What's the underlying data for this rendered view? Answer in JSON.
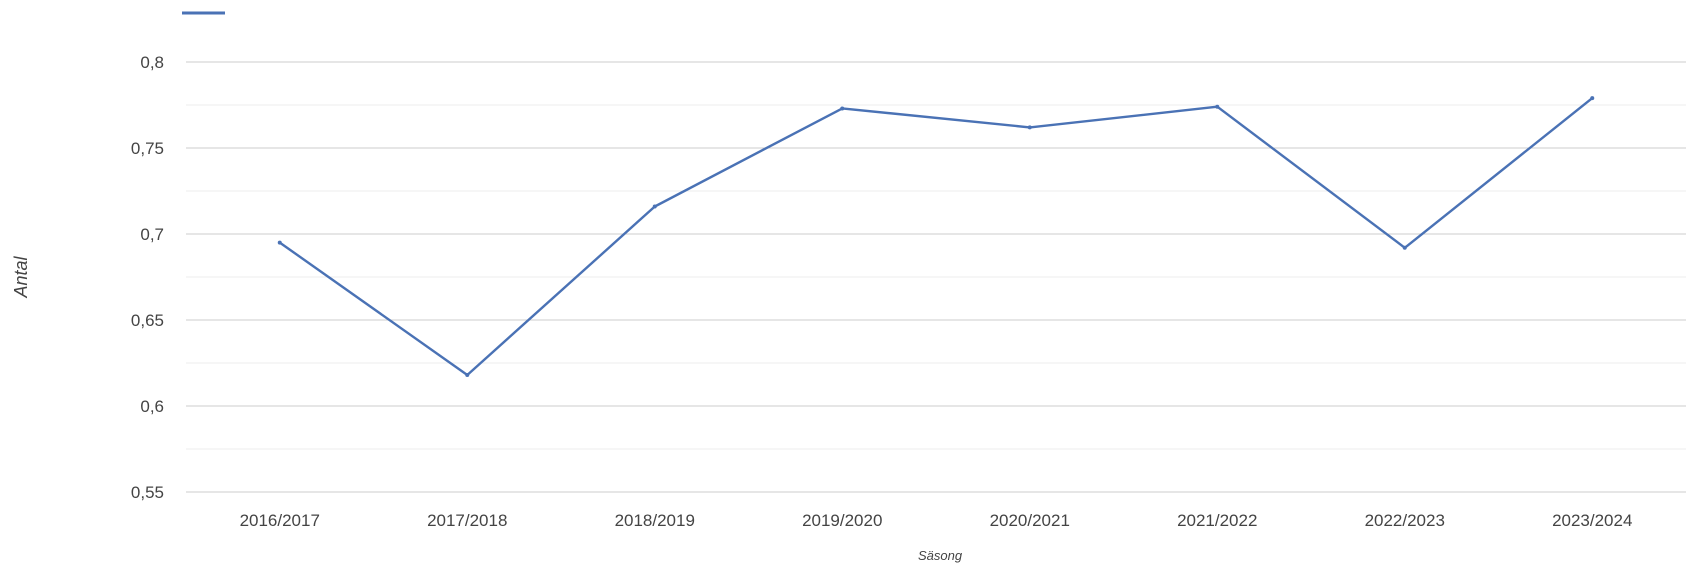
{
  "chart_data": {
    "type": "line",
    "title": "",
    "xlabel": "Säsong",
    "ylabel": "Antal",
    "categories": [
      "2016/2017",
      "2017/2018",
      "2018/2019",
      "2019/2020",
      "2020/2021",
      "2021/2022",
      "2022/2023",
      "2023/2024"
    ],
    "series": [
      {
        "values": [
          0.695,
          0.618,
          0.716,
          0.773,
          0.762,
          0.774,
          0.692,
          0.779
        ],
        "color": "#4a72b5"
      }
    ],
    "ylim": [
      0.55,
      0.8
    ],
    "yticks": [
      0.55,
      0.6,
      0.65,
      0.7,
      0.75,
      0.8
    ],
    "ytick_labels": [
      "0,55",
      "0,6",
      "0,65",
      "0,7",
      "0,75",
      "0,8"
    ],
    "grid": true,
    "legend": "top-left"
  }
}
